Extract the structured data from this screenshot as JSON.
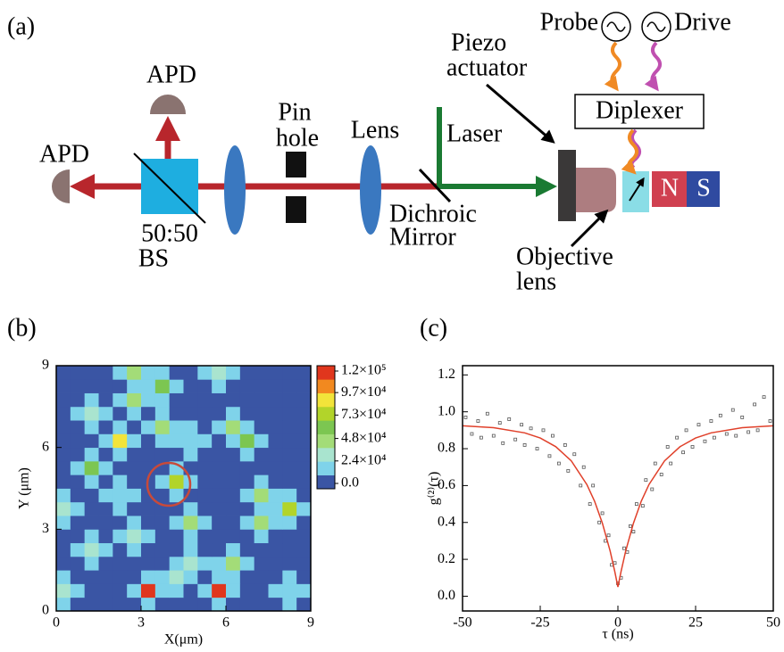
{
  "panel_labels": [
    "(a)",
    "(b)",
    "(c)"
  ],
  "diagram": {
    "probe": "Probe",
    "drive": "Drive",
    "piezo": [
      "Piezo",
      "actuator"
    ],
    "apd_left": "APD",
    "apd_top": "APD",
    "pinhole": [
      "Pin",
      "hole"
    ],
    "lens": "Lens",
    "laser": "Laser",
    "diplexer": "Diplexer",
    "north": "N",
    "south": "S",
    "dichroic": [
      "Dichroic",
      "Mirror"
    ],
    "beamsplitter": [
      "50:50",
      "BS"
    ],
    "objective": [
      "Objective",
      "lens"
    ]
  },
  "chart_data": [
    {
      "type": "heatmap",
      "xlabel": "X(μm)",
      "ylabel": "Y (μm)",
      "xlim": [
        0,
        9
      ],
      "ylim": [
        0,
        9
      ],
      "xticks": [
        0,
        3,
        6,
        9
      ],
      "yticks": [
        0,
        3,
        6,
        9
      ],
      "zlim": [
        0,
        120000
      ],
      "colors": [
        "#3a55a4",
        "#7fd3ea",
        "#a9e4cf",
        "#a3dc78",
        "#7cc651",
        "#b2d42a",
        "#f2e43a",
        "#f2891f",
        "#e0361d"
      ],
      "colorbar_ticks": [
        {
          "value": 0,
          "label": "0.0"
        },
        {
          "value": 24000,
          "label": "2.4×10⁴"
        },
        {
          "value": 48000,
          "label": "4.8×10⁴"
        },
        {
          "value": 73000,
          "label": "7.3×10⁴"
        },
        {
          "value": 97000,
          "label": "9.7×10⁴"
        },
        {
          "value": 120000,
          "label": "1.2×10⁵"
        }
      ],
      "z": [
        [
          15000,
          0,
          0,
          0,
          0,
          0,
          15000,
          0,
          0,
          0,
          0,
          15000,
          0,
          0,
          0,
          0,
          15000,
          0
        ],
        [
          30000,
          15000,
          0,
          0,
          0,
          15000,
          120000,
          15000,
          15000,
          0,
          15000,
          110000,
          15000,
          0,
          0,
          15000,
          20000,
          15000
        ],
        [
          15000,
          0,
          0,
          0,
          0,
          0,
          15000,
          15000,
          30000,
          15000,
          0,
          15000,
          15000,
          0,
          0,
          0,
          15000,
          0
        ],
        [
          0,
          0,
          15000,
          0,
          0,
          0,
          0,
          0,
          15000,
          30000,
          15000,
          15000,
          40000,
          15000,
          0,
          0,
          0,
          0
        ],
        [
          0,
          15000,
          30000,
          15000,
          0,
          15000,
          0,
          0,
          0,
          15000,
          0,
          0,
          15000,
          0,
          0,
          0,
          0,
          0
        ],
        [
          0,
          0,
          15000,
          0,
          15000,
          30000,
          15000,
          0,
          0,
          15000,
          0,
          0,
          0,
          0,
          15000,
          0,
          0,
          0
        ],
        [
          15000,
          0,
          0,
          0,
          0,
          15000,
          0,
          0,
          15000,
          40000,
          15000,
          0,
          0,
          15000,
          50000,
          15000,
          15000,
          0
        ],
        [
          30000,
          15000,
          0,
          0,
          15000,
          0,
          0,
          0,
          0,
          15000,
          0,
          0,
          0,
          0,
          15000,
          15000,
          70000,
          15000
        ],
        [
          15000,
          0,
          0,
          15000,
          24000,
          15000,
          0,
          0,
          15000,
          0,
          0,
          0,
          0,
          15000,
          40000,
          15000,
          15000,
          0
        ],
        [
          0,
          0,
          15000,
          0,
          15000,
          0,
          0,
          15000,
          70000,
          15000,
          0,
          0,
          0,
          0,
          15000,
          0,
          0,
          0
        ],
        [
          0,
          15000,
          60000,
          15000,
          0,
          0,
          0,
          0,
          15000,
          0,
          0,
          0,
          0,
          0,
          0,
          0,
          0,
          0
        ],
        [
          0,
          0,
          15000,
          0,
          15000,
          0,
          0,
          0,
          0,
          15000,
          0,
          0,
          0,
          15000,
          0,
          0,
          0,
          0
        ],
        [
          0,
          0,
          0,
          15000,
          80000,
          15000,
          0,
          15000,
          15000,
          24000,
          15000,
          0,
          15000,
          60000,
          15000,
          0,
          0,
          0
        ],
        [
          0,
          0,
          15000,
          0,
          15000,
          0,
          15000,
          40000,
          15000,
          15000,
          0,
          15000,
          50000,
          15000,
          0,
          0,
          0,
          0
        ],
        [
          0,
          15000,
          30000,
          15000,
          0,
          15000,
          0,
          15000,
          0,
          0,
          0,
          0,
          15000,
          0,
          0,
          0,
          0,
          0
        ],
        [
          0,
          0,
          15000,
          0,
          15000,
          50000,
          15000,
          15000,
          0,
          0,
          0,
          0,
          0,
          0,
          0,
          0,
          0,
          0
        ],
        [
          0,
          0,
          0,
          0,
          0,
          15000,
          15000,
          60000,
          15000,
          0,
          0,
          15000,
          0,
          0,
          0,
          0,
          0,
          0
        ],
        [
          0,
          0,
          0,
          0,
          15000,
          50000,
          15000,
          15000,
          0,
          0,
          15000,
          30000,
          15000,
          0,
          0,
          0,
          0,
          0
        ]
      ]
    },
    {
      "type": "scatter",
      "xlabel": "τ (ns)",
      "ylabel": "g⁽²⁾(τ)",
      "xlim": [
        -50,
        50
      ],
      "ylim": [
        -0.08,
        1.25
      ],
      "xticks": [
        -50,
        -25,
        0,
        25,
        50
      ],
      "yticks": [
        {
          "value": 0,
          "label": "0.0"
        },
        0.2,
        0.4,
        0.6,
        0.8,
        {
          "value": 1,
          "label": "1.0"
        },
        1.2
      ],
      "points": {
        "color": "#555555",
        "x": [
          -49,
          -47,
          -45,
          -44,
          -42,
          -40,
          -38,
          -37,
          -35,
          -33,
          -31,
          -30,
          -28,
          -26,
          -24,
          -22,
          -21,
          -19,
          -17,
          -16,
          -14,
          -12,
          -11,
          -9,
          -8,
          -6,
          -5,
          -4,
          -3,
          -2,
          -1,
          0,
          1,
          2,
          3,
          4,
          5,
          6,
          8,
          9,
          11,
          12,
          14,
          16,
          17,
          19,
          21,
          22,
          24,
          26,
          28,
          30,
          31,
          33,
          35,
          37,
          38,
          40,
          42,
          44,
          45,
          47,
          49
        ],
        "values": [
          0.97,
          0.88,
          0.95,
          0.86,
          0.99,
          0.87,
          0.94,
          0.83,
          0.96,
          0.85,
          0.93,
          0.82,
          0.91,
          0.8,
          0.9,
          0.76,
          0.87,
          0.72,
          0.82,
          0.68,
          0.77,
          0.6,
          0.7,
          0.5,
          0.6,
          0.4,
          0.45,
          0.3,
          0.33,
          0.17,
          0.18,
          0.07,
          0.1,
          0.26,
          0.24,
          0.38,
          0.35,
          0.5,
          0.49,
          0.63,
          0.58,
          0.72,
          0.66,
          0.81,
          0.72,
          0.86,
          0.78,
          0.9,
          0.81,
          0.93,
          0.84,
          0.95,
          0.86,
          0.98,
          0.88,
          1.01,
          0.87,
          0.97,
          0.89,
          1.04,
          0.9,
          1.08,
          0.95
        ]
      },
      "fit": {
        "color": "#e0402a",
        "x": [
          -50,
          -40,
          -30,
          -25,
          -20,
          -15,
          -10,
          -7.5,
          -5,
          -2.5,
          -1,
          0,
          1,
          2.5,
          5,
          7.5,
          10,
          15,
          20,
          25,
          30,
          40,
          50
        ],
        "values": [
          0.924,
          0.914,
          0.886,
          0.858,
          0.811,
          0.734,
          0.606,
          0.515,
          0.396,
          0.245,
          0.134,
          0.05,
          0.134,
          0.245,
          0.396,
          0.515,
          0.606,
          0.734,
          0.811,
          0.858,
          0.886,
          0.914,
          0.924
        ]
      }
    }
  ]
}
